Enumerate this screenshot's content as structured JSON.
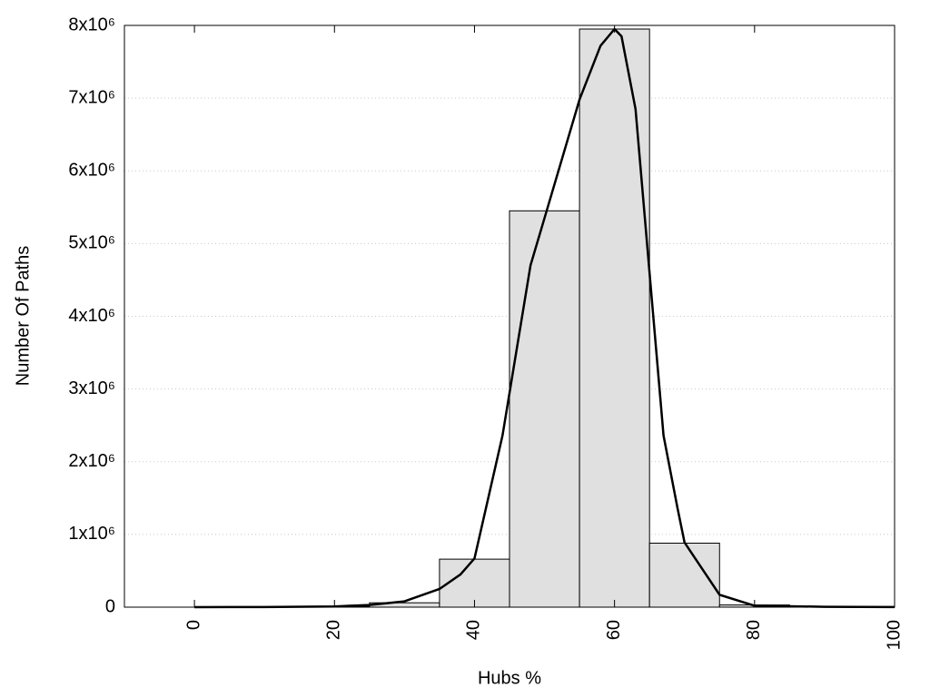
{
  "chart_data": {
    "type": "histogram",
    "xlabel": "Hubs %",
    "ylabel": "Number Of Paths",
    "bins": [
      5,
      15,
      25,
      35,
      45,
      55,
      65,
      75,
      85,
      95
    ],
    "counts": [
      5000,
      10000,
      60000,
      660000,
      5450000,
      7950000,
      880000,
      30000,
      5000
    ],
    "bar_color": "#e0e0e0",
    "curve": {
      "color": "#000000",
      "x": [
        0,
        10,
        20,
        25,
        30,
        35,
        38,
        40,
        44,
        48,
        50,
        55,
        58,
        60,
        61,
        63,
        65,
        67,
        69,
        70,
        75,
        80,
        90,
        100
      ],
      "y": [
        0,
        2000,
        10000,
        30000,
        80000,
        250000,
        450000,
        670000,
        2360000,
        4700000,
        5350000,
        6980000,
        7720000,
        7950000,
        7850000,
        6850000,
        4600000,
        2360000,
        1360000,
        890000,
        170000,
        20000,
        5000,
        2000
      ]
    },
    "xlim": [
      -10,
      100
    ],
    "xticks": [
      0,
      20,
      40,
      60,
      80,
      100
    ],
    "ylim": [
      0,
      8000000
    ],
    "yticks": [
      0,
      {
        "value": 1000000,
        "label": "1x10⁶"
      },
      {
        "value": 2000000,
        "label": "2x10⁶"
      },
      {
        "value": 3000000,
        "label": "3x10⁶"
      },
      {
        "value": 4000000,
        "label": "4x10⁶"
      },
      {
        "value": 5000000,
        "label": "5x10⁶"
      },
      {
        "value": 6000000,
        "label": "6x10⁶"
      },
      {
        "value": 7000000,
        "label": "7x10⁶"
      },
      {
        "value": 8000000,
        "label": "8x10⁶"
      }
    ],
    "grid": true
  }
}
